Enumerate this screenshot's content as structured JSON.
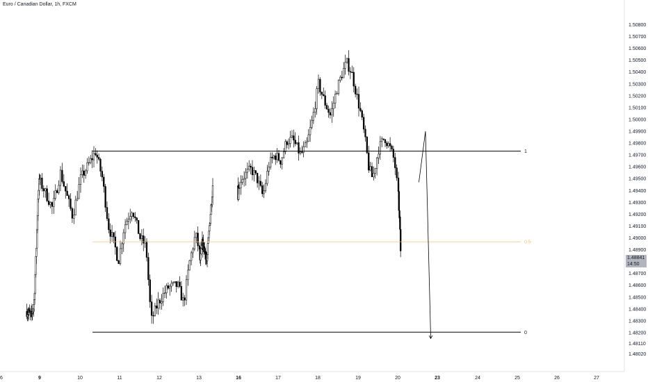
{
  "header": {
    "title": "Euro / Canadian Dollar, 1h, FXCM"
  },
  "price_marker": {
    "price": "1.48841",
    "countdown": "14:50",
    "value": 1.48841
  },
  "colors": {
    "candle": "#000000",
    "background": "#ffffff",
    "fib_mid": "#f5c07a",
    "axis_text": "#131722",
    "price_box": "#b2b5be"
  },
  "chart_data": {
    "type": "candlestick",
    "symbol": "Euro / Canadian Dollar",
    "interval": "1h",
    "source": "FXCM",
    "ylim": [
      1.4793,
      1.5092
    ],
    "y_ticks": [
      "1.50800",
      "1.50700",
      "1.50600",
      "1.50500",
      "1.50400",
      "1.50300",
      "1.50200",
      "1.50100",
      "1.50000",
      "1.49900",
      "1.49800",
      "1.49700",
      "1.49600",
      "1.49500",
      "1.49400",
      "1.49300",
      "1.49200",
      "1.49100",
      "1.49000",
      "1.48900",
      "1.48800",
      "1.48700",
      "1.48600",
      "1.48500",
      "1.48400",
      "1.48300",
      "1.48200",
      "1.48110",
      "1.48020"
    ],
    "x_ticks": [
      {
        "label": "6",
        "day": 6,
        "bold": false
      },
      {
        "label": "9",
        "day": 9,
        "bold": true
      },
      {
        "label": "10",
        "day": 10,
        "bold": false
      },
      {
        "label": "11",
        "day": 11,
        "bold": false
      },
      {
        "label": "12",
        "day": 12,
        "bold": false
      },
      {
        "label": "13",
        "day": 13,
        "bold": false
      },
      {
        "label": "16",
        "day": 16,
        "bold": true
      },
      {
        "label": "17",
        "day": 17,
        "bold": false
      },
      {
        "label": "18",
        "day": 18,
        "bold": false
      },
      {
        "label": "19",
        "day": 19,
        "bold": false
      },
      {
        "label": "20",
        "day": 20,
        "bold": false
      },
      {
        "label": "23",
        "day": 23,
        "bold": true
      },
      {
        "label": "24",
        "day": 24,
        "bold": false
      },
      {
        "label": "25",
        "day": 25,
        "bold": false
      },
      {
        "label": "26",
        "day": 26,
        "bold": false
      },
      {
        "label": "27",
        "day": 27,
        "bold": false
      }
    ],
    "candle_path": [
      {
        "day": 8.0,
        "price": 1.4838
      },
      {
        "day": 8.35,
        "price": 1.4834
      },
      {
        "day": 8.55,
        "price": 1.4848
      },
      {
        "day": 8.7,
        "price": 1.489
      },
      {
        "day": 8.85,
        "price": 1.494
      },
      {
        "day": 8.95,
        "price": 1.495
      },
      {
        "day": 9.1,
        "price": 1.494
      },
      {
        "day": 9.3,
        "price": 1.4925
      },
      {
        "day": 9.5,
        "price": 1.4955
      },
      {
        "day": 9.8,
        "price": 1.4918
      },
      {
        "day": 10.0,
        "price": 1.495
      },
      {
        "day": 10.25,
        "price": 1.4965
      },
      {
        "day": 10.38,
        "price": 1.4973
      },
      {
        "day": 10.55,
        "price": 1.495
      },
      {
        "day": 10.7,
        "price": 1.491
      },
      {
        "day": 10.85,
        "price": 1.4895
      },
      {
        "day": 10.95,
        "price": 1.488
      },
      {
        "day": 11.1,
        "price": 1.491
      },
      {
        "day": 11.3,
        "price": 1.4925
      },
      {
        "day": 11.5,
        "price": 1.49
      },
      {
        "day": 11.65,
        "price": 1.4893
      },
      {
        "day": 11.78,
        "price": 1.483
      },
      {
        "day": 11.95,
        "price": 1.4845
      },
      {
        "day": 12.2,
        "price": 1.4858
      },
      {
        "day": 12.45,
        "price": 1.486
      },
      {
        "day": 12.6,
        "price": 1.4845
      },
      {
        "day": 12.75,
        "price": 1.488
      },
      {
        "day": 12.9,
        "price": 1.4903
      },
      {
        "day": 13.05,
        "price": 1.488
      },
      {
        "day": 13.2,
        "price": 1.4895
      },
      {
        "day": 13.4,
        "price": 1.489
      },
      {
        "day": 13.55,
        "price": 1.488
      },
      {
        "day": 13.75,
        "price": 1.491
      },
      {
        "day": 13.9,
        "price": 1.493
      },
      {
        "day": 14.0,
        "price": 1.4945
      },
      {
        "day": 15.9,
        "price": 1.4935
      },
      {
        "day": 16.05,
        "price": 1.495
      },
      {
        "day": 16.3,
        "price": 1.4958
      },
      {
        "day": 16.45,
        "price": 1.495
      },
      {
        "day": 16.6,
        "price": 1.4935
      },
      {
        "day": 16.75,
        "price": 1.4962
      },
      {
        "day": 16.9,
        "price": 1.497
      },
      {
        "day": 17.05,
        "price": 1.4965
      },
      {
        "day": 17.2,
        "price": 1.4982
      },
      {
        "day": 17.35,
        "price": 1.4983
      },
      {
        "day": 17.55,
        "price": 1.497
      },
      {
        "day": 17.7,
        "price": 1.4978
      },
      {
        "day": 17.85,
        "price": 1.5
      },
      {
        "day": 18.0,
        "price": 1.503
      },
      {
        "day": 18.15,
        "price": 1.5015
      },
      {
        "day": 18.3,
        "price": 1.5003
      },
      {
        "day": 18.45,
        "price": 1.5025
      },
      {
        "day": 18.6,
        "price": 1.504
      },
      {
        "day": 18.7,
        "price": 1.5048
      },
      {
        "day": 18.82,
        "price": 1.504
      },
      {
        "day": 18.95,
        "price": 1.502
      },
      {
        "day": 19.05,
        "price": 1.5005
      },
      {
        "day": 19.15,
        "price": 1.4985
      },
      {
        "day": 19.25,
        "price": 1.496
      },
      {
        "day": 19.35,
        "price": 1.495
      },
      {
        "day": 19.5,
        "price": 1.4975
      },
      {
        "day": 19.65,
        "price": 1.4985
      },
      {
        "day": 19.8,
        "price": 1.4975
      },
      {
        "day": 19.9,
        "price": 1.4965
      },
      {
        "day": 20.0,
        "price": 1.4935
      },
      {
        "day": 20.1,
        "price": 1.4912
      },
      {
        "day": 20.18,
        "price": 1.4885
      }
    ],
    "levels": [
      {
        "label": "1",
        "price": 1.49732,
        "start_day": 10.3,
        "end_day": 27.0,
        "color": "#000000"
      },
      {
        "label": "0.5",
        "price": 1.48967,
        "start_day": 10.3,
        "end_day": 27.0,
        "color": "#f5c07a"
      },
      {
        "label": "0",
        "price": 1.48204,
        "start_day": 10.3,
        "end_day": 27.0,
        "color": "#000000"
      }
    ],
    "projection": [
      {
        "day": 21.55,
        "price": 1.4947
      },
      {
        "day": 22.05,
        "price": 1.499
      },
      {
        "day": 22.45,
        "price": 1.4815
      }
    ]
  }
}
